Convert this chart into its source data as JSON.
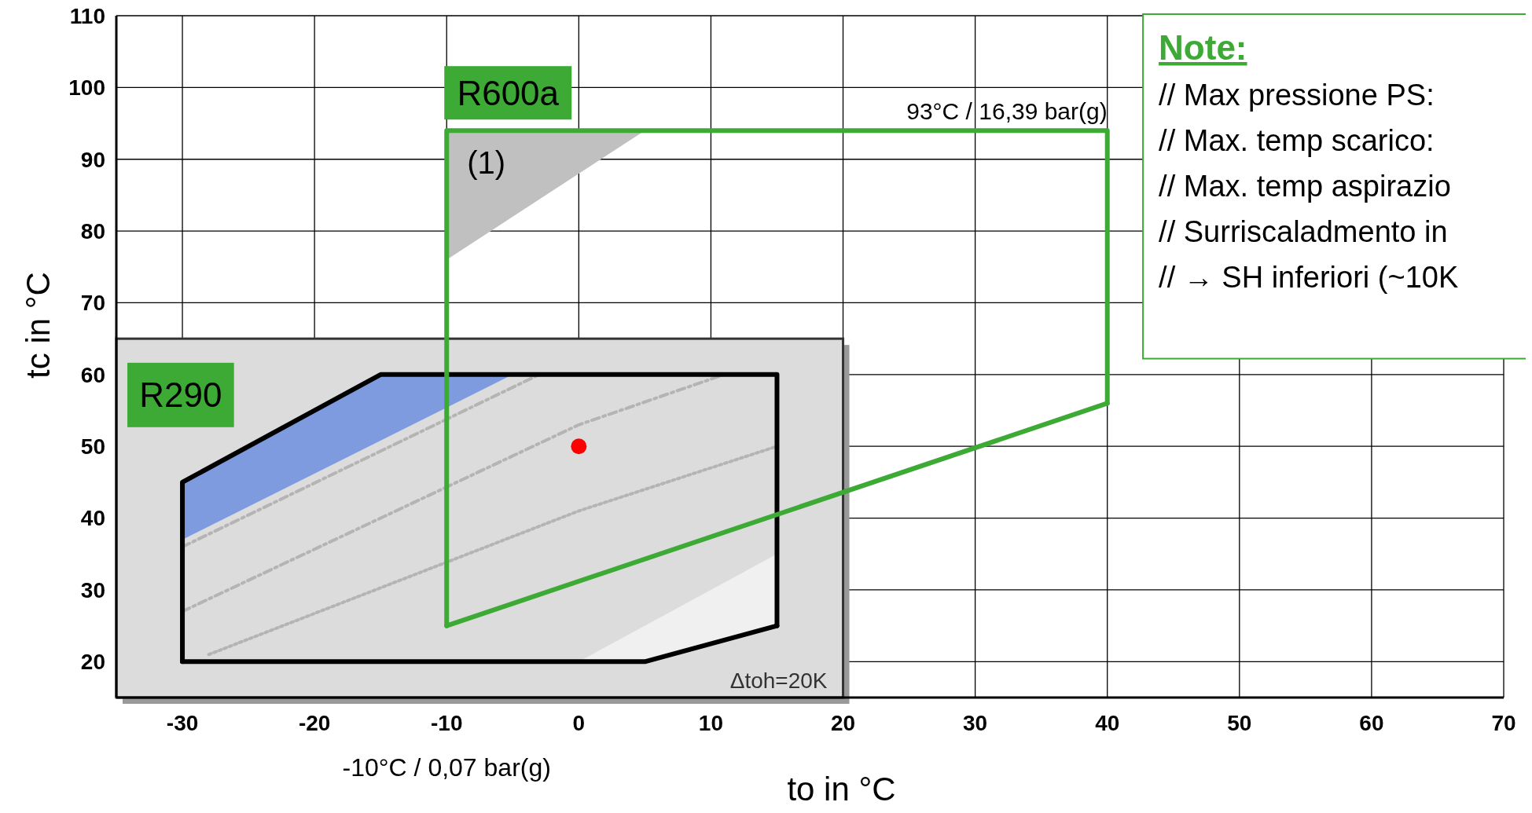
{
  "chart_data": {
    "type": "line",
    "xlabel": "to in °C",
    "ylabel": "tc in °C",
    "xlim": [
      -35,
      70
    ],
    "ylim": [
      15,
      110
    ],
    "xticks": [
      -30,
      -20,
      -10,
      0,
      10,
      20,
      30,
      40,
      50,
      60,
      70
    ],
    "yticks": [
      20,
      30,
      40,
      50,
      60,
      70,
      80,
      90,
      100,
      110
    ],
    "grid": true,
    "series": [
      {
        "type": "area",
        "color": "#7f9be0",
        "x": [
          -30,
          -15,
          -5,
          -30,
          -30
        ],
        "values": [
          45,
          60,
          60,
          37,
          45
        ]
      },
      {
        "type": "area",
        "color": "#f0f0f0",
        "x": [
          0,
          15,
          15,
          5,
          0
        ],
        "values": [
          20,
          35,
          25,
          20,
          20
        ]
      },
      {
        "type": "area",
        "color": "#c0c0c0",
        "x": [
          -10,
          5,
          -10,
          -10
        ],
        "values": [
          94,
          94,
          76,
          94
        ]
      },
      {
        "color": "#b4b4b4",
        "line_style": "dashed",
        "x": [
          -30,
          -3
        ],
        "values": [
          36,
          60
        ]
      },
      {
        "color": "#b4b4b4",
        "line_style": "dashed",
        "x": [
          -30,
          0,
          11
        ],
        "values": [
          27,
          53,
          60
        ]
      },
      {
        "color": "#b4b4b4",
        "line_style": "dotted",
        "x": [
          -28,
          0,
          15
        ],
        "values": [
          21,
          41,
          50
        ]
      },
      {
        "name": "R290",
        "color": "#000000",
        "x": [
          -30,
          -30,
          -15,
          15,
          15
        ],
        "values": [
          20,
          45,
          60,
          60,
          25
        ]
      },
      {
        "name": "R600a",
        "color": "#3daa35",
        "x": [
          -10,
          -10,
          40,
          40
        ],
        "values": [
          25,
          94,
          94,
          56
        ]
      },
      {
        "color": "#000000",
        "x": [
          -30,
          5,
          15
        ],
        "values": [
          20,
          20,
          25
        ]
      },
      {
        "color": "#3daa35",
        "x": [
          -10,
          40
        ],
        "values": [
          25,
          56
        ]
      },
      {
        "type": "scatter",
        "color": "#ff0000",
        "marker": "circle",
        "x": [
          0
        ],
        "values": [
          50
        ]
      }
    ],
    "annotations": [
      {
        "text": "93°C / 16,39 bar(g)",
        "x": 40,
        "y": 94
      },
      "-10°C / 0,07 bar(g)",
      "(1)",
      "Δtoh=20K",
      "Note:",
      "// Max pressione PS:",
      "// Max. temp scarico:",
      "// Max. temp aspirazio",
      "// Surriscaladmento in",
      "// → SH inferiori (~10K"
    ]
  }
}
